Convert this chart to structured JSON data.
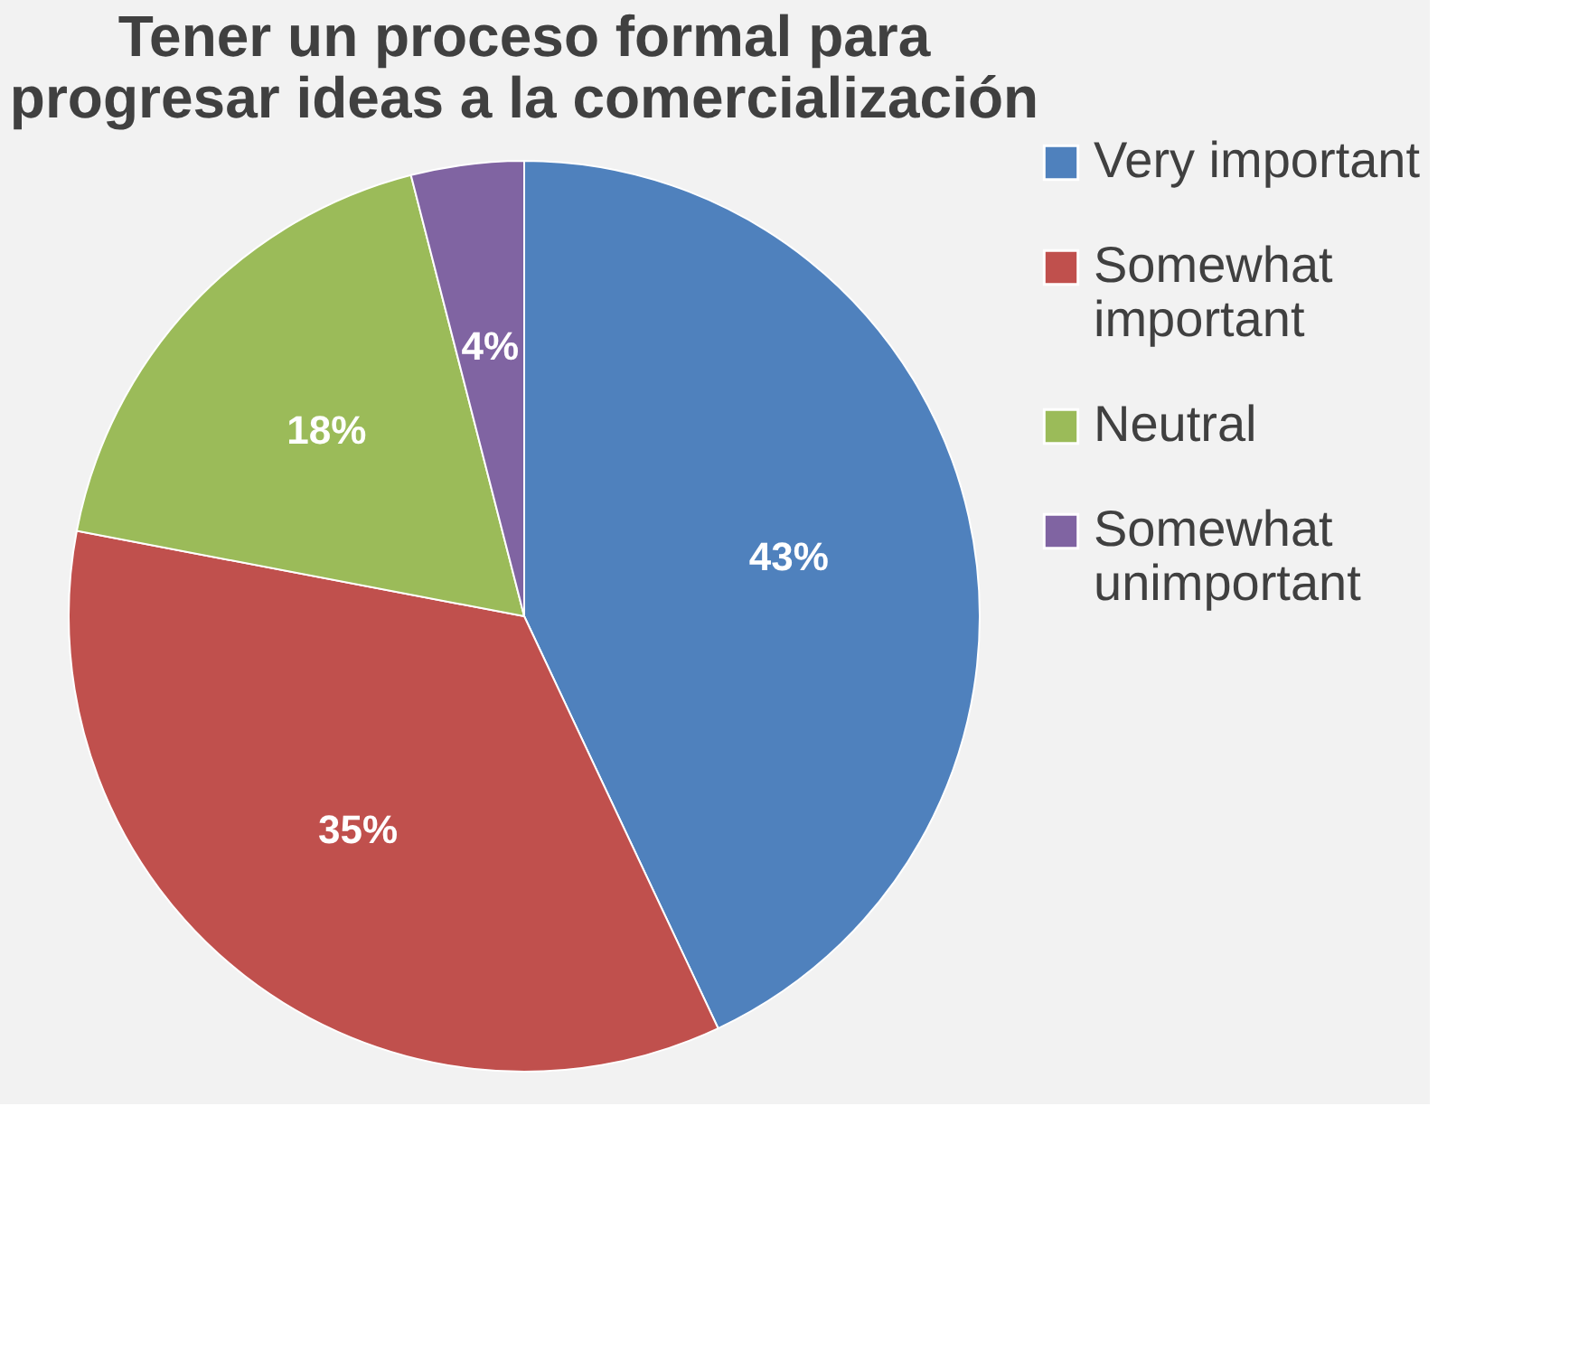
{
  "chart_data": {
    "type": "pie",
    "title": "Tener un proceso formal para progresar ideas a la comercialización",
    "categories": [
      "Very important",
      "Somewhat important",
      "Neutral",
      "Somewhat unimportant"
    ],
    "values": [
      43,
      35,
      18,
      4
    ],
    "colors": [
      "#4f81bd",
      "#c0504d",
      "#9bbb59",
      "#8064a2"
    ],
    "value_labels": [
      "43%",
      "35%",
      "18%",
      "4%"
    ],
    "legend": "right"
  }
}
